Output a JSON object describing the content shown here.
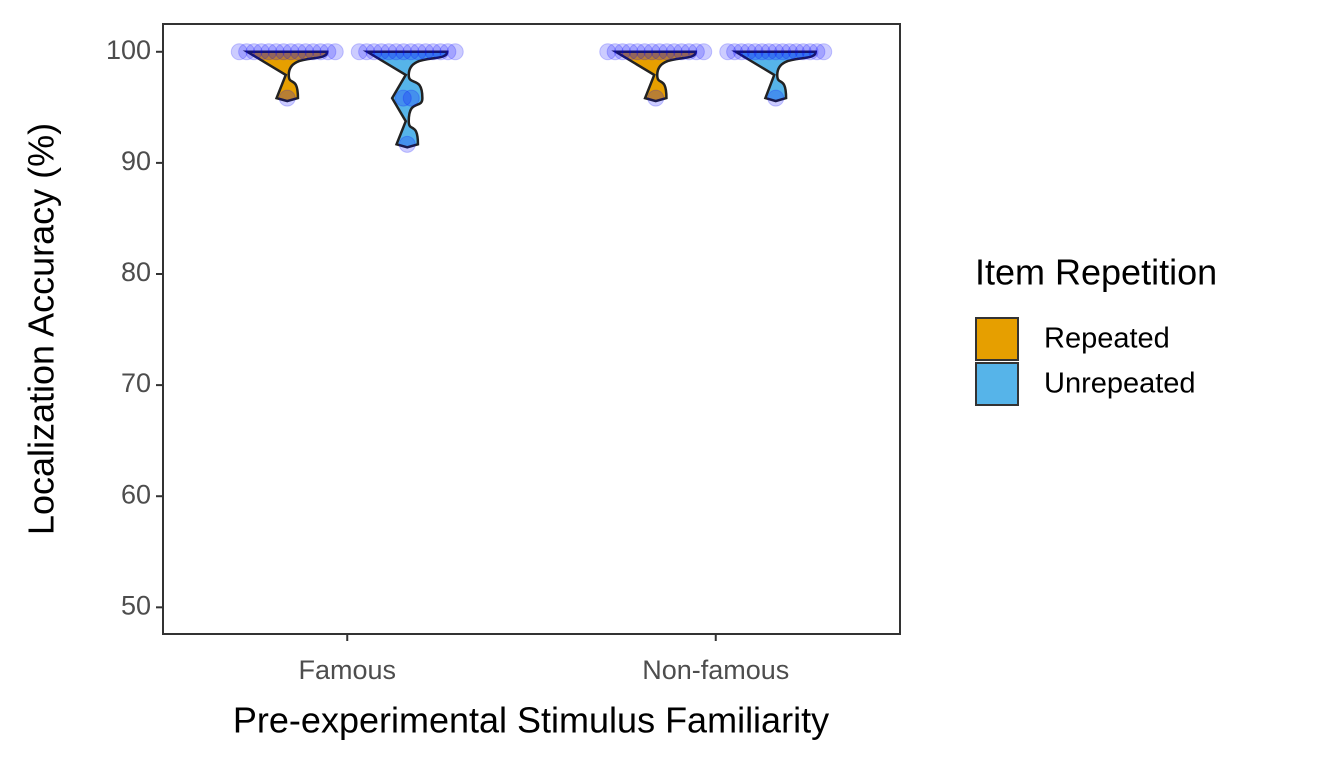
{
  "chart_data": {
    "type": "violin",
    "x_label": "Pre-experimental Stimulus Familiarity",
    "y_label": "Localization Accuracy (%)",
    "categories": [
      "Famous",
      "Non-famous"
    ],
    "legend_title": "Item Repetition",
    "point_color": "#0000ff",
    "series": [
      {
        "name": "Repeated",
        "color": "#e69f00",
        "values": [
          [
            100,
            100,
            100,
            100,
            100,
            100,
            100,
            100,
            100,
            100,
            100,
            100,
            100,
            100,
            95.83
          ],
          [
            100,
            100,
            100,
            100,
            100,
            100,
            100,
            100,
            100,
            100,
            100,
            100,
            100,
            100,
            95.83
          ]
        ]
      },
      {
        "name": "Unrepeated",
        "color": "#56b4e9",
        "values": [
          [
            100,
            100,
            100,
            100,
            100,
            100,
            100,
            100,
            100,
            100,
            100,
            100,
            100,
            100,
            95.83,
            95.83,
            91.67
          ],
          [
            100,
            100,
            100,
            100,
            100,
            100,
            100,
            100,
            100,
            100,
            100,
            100,
            100,
            100,
            100,
            95.83
          ]
        ]
      }
    ],
    "ylim": [
      47.6,
      102.5
    ],
    "yticks": [
      50,
      60,
      70,
      80,
      90,
      100
    ],
    "grid": false
  }
}
